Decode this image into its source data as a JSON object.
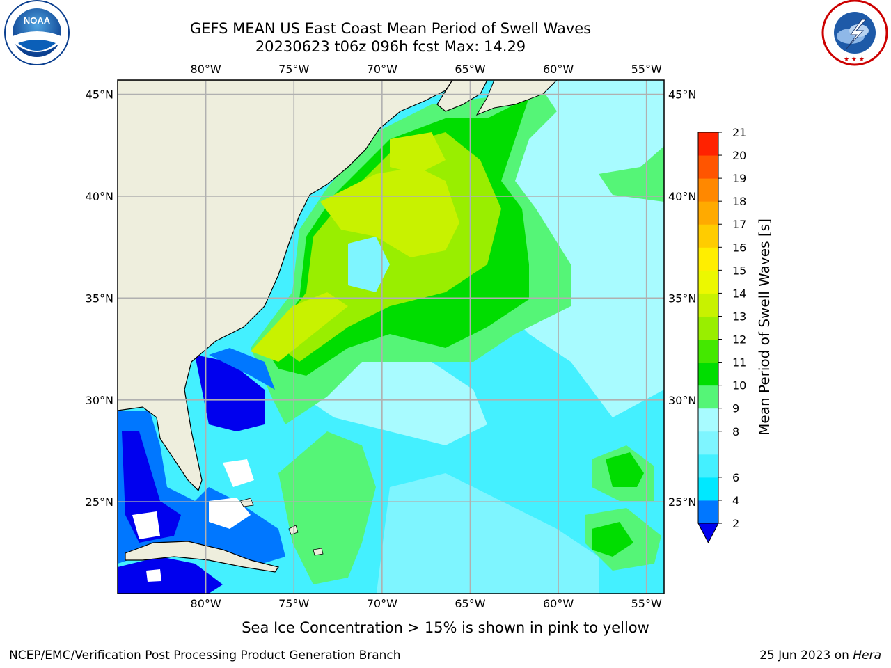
{
  "header": {
    "title_line1": "GEFS MEAN US East Coast Mean Period of Swell Waves",
    "title_line2": "20230623 t06z 096h fcst   Max: 14.29"
  },
  "logos": {
    "left": {
      "name": "noaa-logo",
      "text": "NOAA",
      "ring_text": "NATIONAL OCEANIC AND ATMOSPHERIC ADMINISTRATION · U.S. DEPARTMENT OF COMMERCE"
    },
    "right": {
      "name": "nws-logo",
      "ring_text": "NATIONAL WEATHER SERVICE"
    }
  },
  "map": {
    "lon_labels": [
      "80°W",
      "75°W",
      "70°W",
      "65°W",
      "60°W",
      "55°W"
    ],
    "lat_labels": [
      "45°N",
      "40°N",
      "35°N",
      "30°N",
      "25°N"
    ],
    "lon_range": [
      -85,
      -54
    ],
    "lat_range": [
      20.5,
      45.7
    ],
    "grid": true,
    "colors": {
      "land": "#eeeedd",
      "grid": "#b0b0b0",
      "coast": "#000000"
    }
  },
  "colorbar": {
    "title": "Mean Period of Swell Waves [s]",
    "levels": [
      2,
      4,
      6,
      7,
      8,
      9,
      10,
      11,
      12,
      13,
      14,
      15,
      16,
      17,
      18,
      19,
      20,
      21
    ],
    "tick_labels": [
      "2",
      "4",
      "6",
      "8",
      "9",
      "10",
      "11",
      "12",
      "13",
      "14",
      "15",
      "16",
      "17",
      "18",
      "19",
      "20",
      "21"
    ],
    "colors": [
      "#0077ff",
      "#00e8ff",
      "#44f0ff",
      "#7ef5ff",
      "#a8fbff",
      "#55f577",
      "#00dd00",
      "#44e800",
      "#99ee00",
      "#c8f200",
      "#ecf800",
      "#ffee00",
      "#ffcc00",
      "#ffaa00",
      "#ff8800",
      "#ff5500",
      "#ff2200",
      "#ff0000"
    ],
    "under_color": "#0000ee",
    "extend": "min"
  },
  "footer": {
    "sea_ice_note": "Sea Ice Concentration > 15% is shown in pink to yellow",
    "left": "NCEP/EMC/Verification Post Processing Product Generation Branch",
    "right_date": "25 Jun 2023 on ",
    "right_machine": "Hera"
  }
}
